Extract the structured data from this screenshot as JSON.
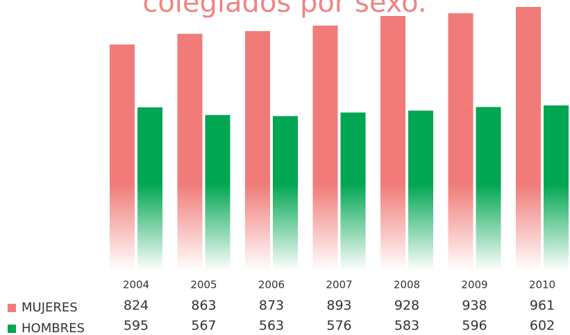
{
  "chart_data": {
    "type": "bar",
    "title": "colegiados por sexo.",
    "categories": [
      "2004",
      "2005",
      "2006",
      "2007",
      "2008",
      "2009",
      "2010"
    ],
    "series": [
      {
        "name": "MUJERES",
        "color": "#f07b78",
        "values": [
          824,
          863,
          873,
          893,
          928,
          938,
          961
        ]
      },
      {
        "name": "HOMBRES",
        "color": "#00a651",
        "values": [
          595,
          567,
          563,
          576,
          583,
          596,
          602
        ]
      }
    ]
  }
}
